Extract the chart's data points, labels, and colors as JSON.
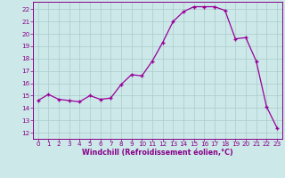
{
  "x": [
    0,
    1,
    2,
    3,
    4,
    5,
    6,
    7,
    8,
    9,
    10,
    11,
    12,
    13,
    14,
    15,
    16,
    17,
    18,
    19,
    20,
    21,
    22,
    23
  ],
  "y": [
    14.6,
    15.1,
    14.7,
    14.6,
    14.5,
    15.0,
    14.7,
    14.8,
    15.9,
    16.7,
    16.6,
    17.8,
    19.3,
    21.0,
    21.8,
    22.2,
    22.2,
    22.2,
    21.9,
    19.6,
    19.7,
    17.8,
    14.1,
    12.4
  ],
  "line_color": "#990099",
  "marker": "+",
  "marker_size": 3.5,
  "marker_lw": 1.0,
  "bg_color": "#cce8e8",
  "grid_color": "#aacccc",
  "xlabel": "Windchill (Refroidissement éolien,°C)",
  "xlim": [
    -0.5,
    23.5
  ],
  "ylim": [
    11.5,
    22.6
  ],
  "yticks": [
    12,
    13,
    14,
    15,
    16,
    17,
    18,
    19,
    20,
    21,
    22
  ],
  "xticks": [
    0,
    1,
    2,
    3,
    4,
    5,
    6,
    7,
    8,
    9,
    10,
    11,
    12,
    13,
    14,
    15,
    16,
    17,
    18,
    19,
    20,
    21,
    22,
    23
  ],
  "tick_color": "#880088",
  "label_fontsize": 5.8,
  "tick_fontsize": 5.2,
  "linewidth": 0.9
}
